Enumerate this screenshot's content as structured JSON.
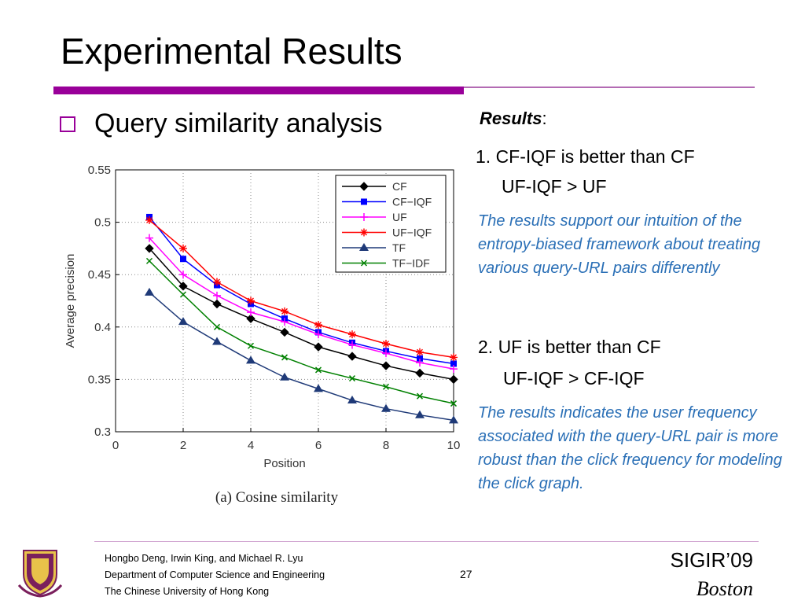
{
  "slide": {
    "title": "Experimental Results",
    "bullet": "Query similarity analysis"
  },
  "results": {
    "heading": "Results",
    "heading_suffix": ":",
    "point1_line1": "1. CF-IQF is better than CF",
    "point1_line2": "UF-IQF > UF",
    "note1": "The results support our intuition of the entropy-biased framework about treating various query-URL pairs differently",
    "point2_line1": "2. UF is better than CF",
    "point2_line2": "UF-IQF > CF-IQF",
    "note2": "The results indicates the user frequency associated with the query-URL pair is more robust than the click frequency for modeling the click graph."
  },
  "footer": {
    "authors": "Hongbo Deng, Irwin King, and Michael R. Lyu",
    "department": "Department of Computer Science and Engineering",
    "university": "The Chinese University of Hong Kong",
    "page": "27",
    "conference": "SIGIR’09",
    "city": "Boston"
  },
  "colors": {
    "title_bar": "#990099",
    "note_text": "#2a6fb6"
  },
  "chart_data": {
    "type": "line",
    "caption": "(a) Cosine similarity",
    "xlabel": "Position",
    "ylabel": "Average precision",
    "xlim": [
      0,
      10
    ],
    "ylim": [
      0.3,
      0.55
    ],
    "xticks": [
      0,
      2,
      4,
      6,
      8,
      10
    ],
    "yticks": [
      0.3,
      0.35,
      0.4,
      0.45,
      0.5,
      0.55
    ],
    "grid": true,
    "legend_position": "top-right",
    "x": [
      1,
      2,
      3,
      4,
      5,
      6,
      7,
      8,
      9,
      10
    ],
    "series": [
      {
        "name": "CF",
        "color": "#000000",
        "marker": "diamond",
        "values": [
          0.475,
          0.439,
          0.422,
          0.408,
          0.395,
          0.381,
          0.372,
          0.363,
          0.356,
          0.35
        ]
      },
      {
        "name": "CF−IQF",
        "color": "#0000ff",
        "marker": "square",
        "values": [
          0.505,
          0.465,
          0.44,
          0.422,
          0.408,
          0.395,
          0.385,
          0.377,
          0.37,
          0.365
        ]
      },
      {
        "name": "UF",
        "color": "#ff00ff",
        "marker": "plus",
        "values": [
          0.485,
          0.45,
          0.43,
          0.414,
          0.405,
          0.393,
          0.383,
          0.375,
          0.366,
          0.36
        ]
      },
      {
        "name": "UF−IQF",
        "color": "#ff0000",
        "marker": "star",
        "values": [
          0.502,
          0.475,
          0.443,
          0.425,
          0.415,
          0.402,
          0.393,
          0.384,
          0.376,
          0.371
        ]
      },
      {
        "name": "TF",
        "color": "#1f3a78",
        "marker": "triangle",
        "values": [
          0.433,
          0.405,
          0.386,
          0.368,
          0.352,
          0.341,
          0.33,
          0.322,
          0.316,
          0.311
        ]
      },
      {
        "name": "TF−IDF",
        "color": "#008000",
        "marker": "x",
        "values": [
          0.463,
          0.431,
          0.4,
          0.382,
          0.371,
          0.359,
          0.351,
          0.343,
          0.334,
          0.327
        ]
      }
    ]
  }
}
